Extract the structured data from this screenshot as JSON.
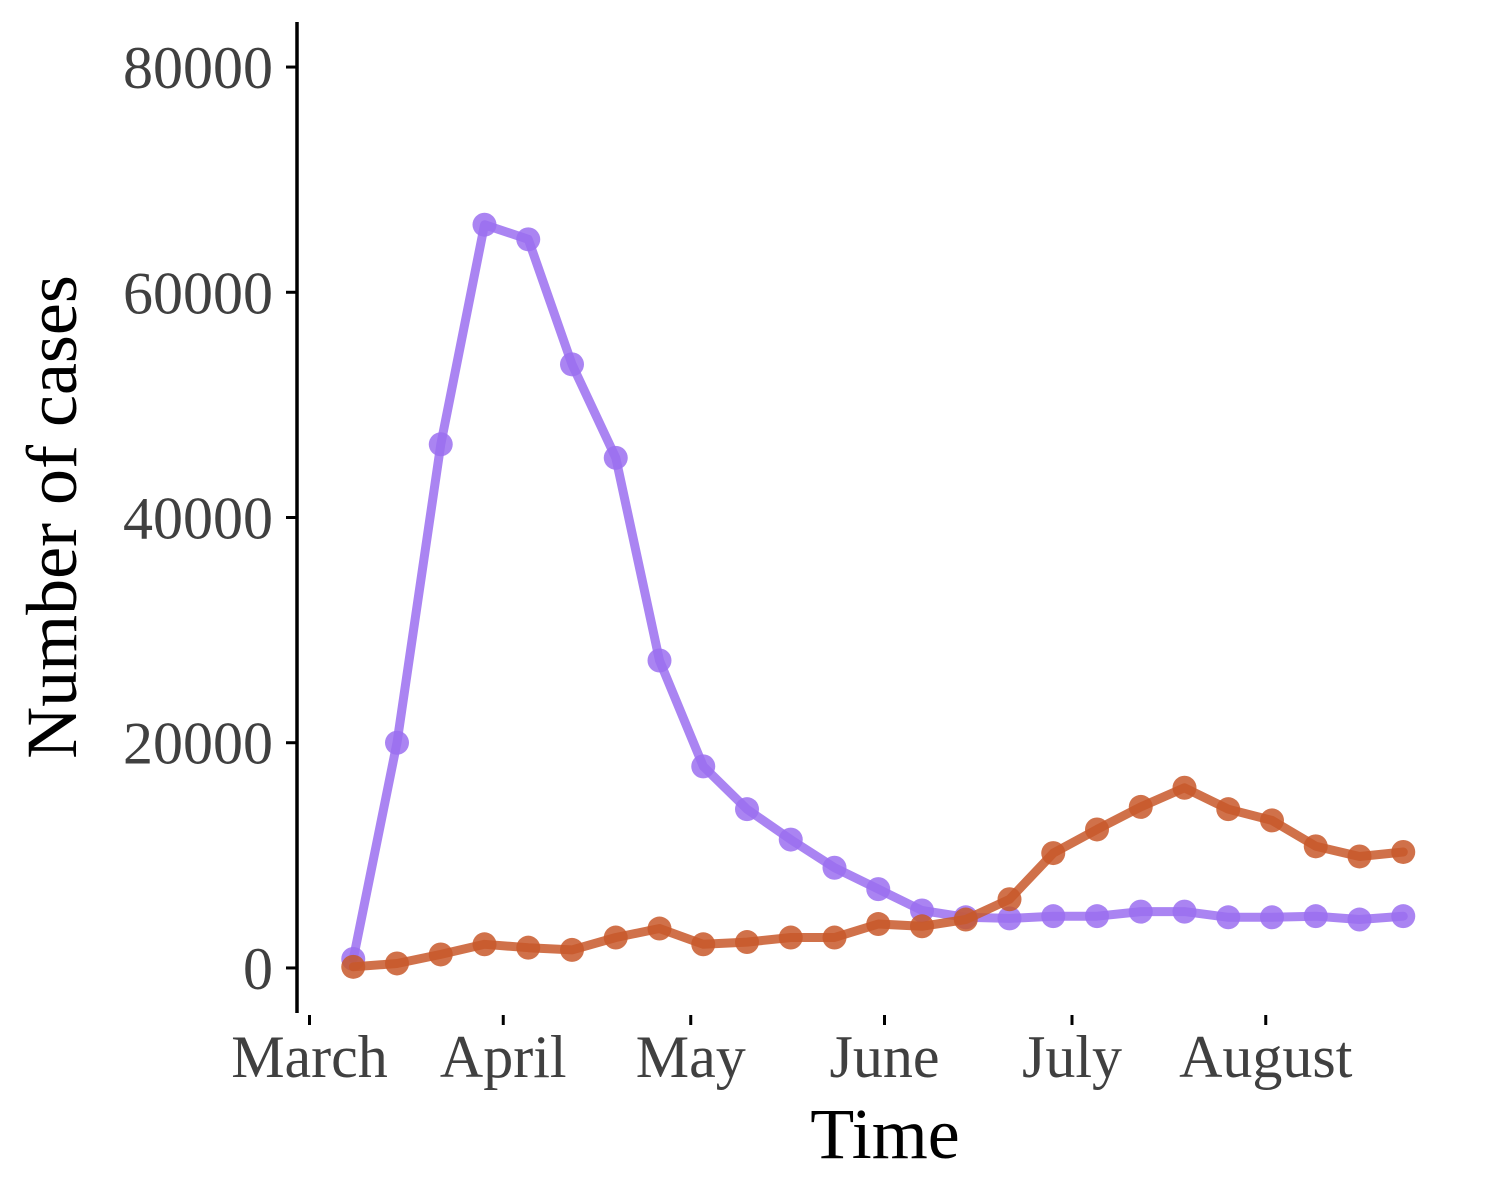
{
  "chart_data": {
    "type": "line",
    "xlabel": "Time",
    "ylabel": "Number of cases",
    "ylim": [
      -4000,
      84000
    ],
    "xlim": [
      "2020-02-28",
      "2020-08-30"
    ],
    "y_ticks": [
      0,
      20000,
      40000,
      60000,
      80000
    ],
    "x_ticks": [
      {
        "date": "2020-03-01",
        "label": "March"
      },
      {
        "date": "2020-04-01",
        "label": "April"
      },
      {
        "date": "2020-05-01",
        "label": "May"
      },
      {
        "date": "2020-06-01",
        "label": "June"
      },
      {
        "date": "2020-07-01",
        "label": "July"
      },
      {
        "date": "2020-08-01",
        "label": "August"
      }
    ],
    "grid": false,
    "legend": "none",
    "x": [
      "2020-03-08",
      "2020-03-15",
      "2020-03-22",
      "2020-03-29",
      "2020-04-05",
      "2020-04-12",
      "2020-04-19",
      "2020-04-26",
      "2020-05-03",
      "2020-05-10",
      "2020-05-17",
      "2020-05-24",
      "2020-05-31",
      "2020-06-07",
      "2020-06-14",
      "2020-06-21",
      "2020-06-28",
      "2020-07-05",
      "2020-07-12",
      "2020-07-19",
      "2020-07-26",
      "2020-08-02",
      "2020-08-09",
      "2020-08-16",
      "2020-08-23"
    ],
    "series": [
      {
        "color": "#9b6ef0",
        "values": [
          800,
          20000,
          46500,
          66000,
          64700,
          53600,
          45300,
          27300,
          17900,
          14100,
          11400,
          8900,
          7000,
          5100,
          4500,
          4400,
          4600,
          4600,
          5000,
          5000,
          4500,
          4500,
          4600,
          4300,
          4600
        ]
      },
      {
        "color": "#c8582a",
        "values": [
          100,
          400,
          1200,
          2100,
          1800,
          1600,
          2700,
          3500,
          2100,
          2300,
          2700,
          2700,
          3900,
          3700,
          4300,
          6100,
          10200,
          12300,
          14300,
          16000,
          14100,
          13100,
          10800,
          9900,
          10300
        ]
      }
    ]
  }
}
